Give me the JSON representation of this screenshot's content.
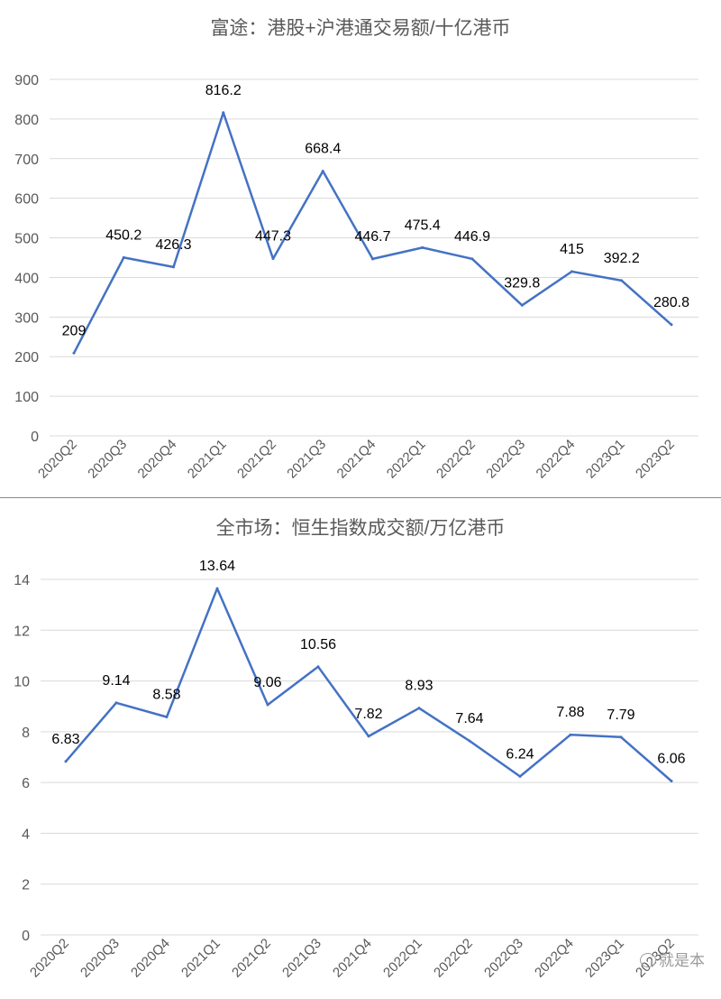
{
  "chart_data": [
    {
      "type": "line",
      "title": "富途：港股+沪港通交易额/十亿港币",
      "categories": [
        "2020Q2",
        "2020Q3",
        "2020Q4",
        "2021Q1",
        "2021Q2",
        "2021Q3",
        "2021Q4",
        "2022Q1",
        "2022Q2",
        "2022Q3",
        "2022Q4",
        "2023Q1",
        "2023Q2"
      ],
      "values": [
        209,
        450.2,
        426.3,
        816.2,
        447.3,
        668.4,
        446.7,
        475.4,
        446.9,
        329.8,
        415,
        392.2,
        280.8
      ],
      "labels": [
        "209",
        "450.2",
        "426.3",
        "816.2",
        "447.3",
        "668.4",
        "446.7",
        "475.4",
        "446.9",
        "329.8",
        "415",
        "392.2",
        "280.8"
      ],
      "ylim": [
        0,
        900
      ],
      "yticks": [
        "0",
        "100",
        "200",
        "300",
        "400",
        "500",
        "600",
        "700",
        "800",
        "900"
      ],
      "grid": true,
      "color": "#4472c4"
    },
    {
      "type": "line",
      "title": "全市场：恒生指数成交额/万亿港币",
      "categories": [
        "2020Q2",
        "2020Q3",
        "2020Q4",
        "2021Q1",
        "2021Q2",
        "2021Q3",
        "2021Q4",
        "2022Q1",
        "2022Q2",
        "2022Q3",
        "2022Q4",
        "2023Q1",
        "2023Q2"
      ],
      "values": [
        6.83,
        9.14,
        8.58,
        13.64,
        9.06,
        10.56,
        7.82,
        8.93,
        7.64,
        6.24,
        7.88,
        7.79,
        6.06
      ],
      "labels": [
        "6.83",
        "9.14",
        "8.58",
        "13.64",
        "9.06",
        "10.56",
        "7.82",
        "8.93",
        "7.64",
        "6.24",
        "7.88",
        "7.79",
        "6.06"
      ],
      "ylim": [
        0,
        14
      ],
      "yticks": [
        "0",
        "2",
        "4",
        "6",
        "8",
        "10",
        "12",
        "14"
      ],
      "grid": true,
      "color": "#4472c4"
    }
  ],
  "watermark": {
    "text": "就是本",
    "icon": "wechat-icon"
  }
}
